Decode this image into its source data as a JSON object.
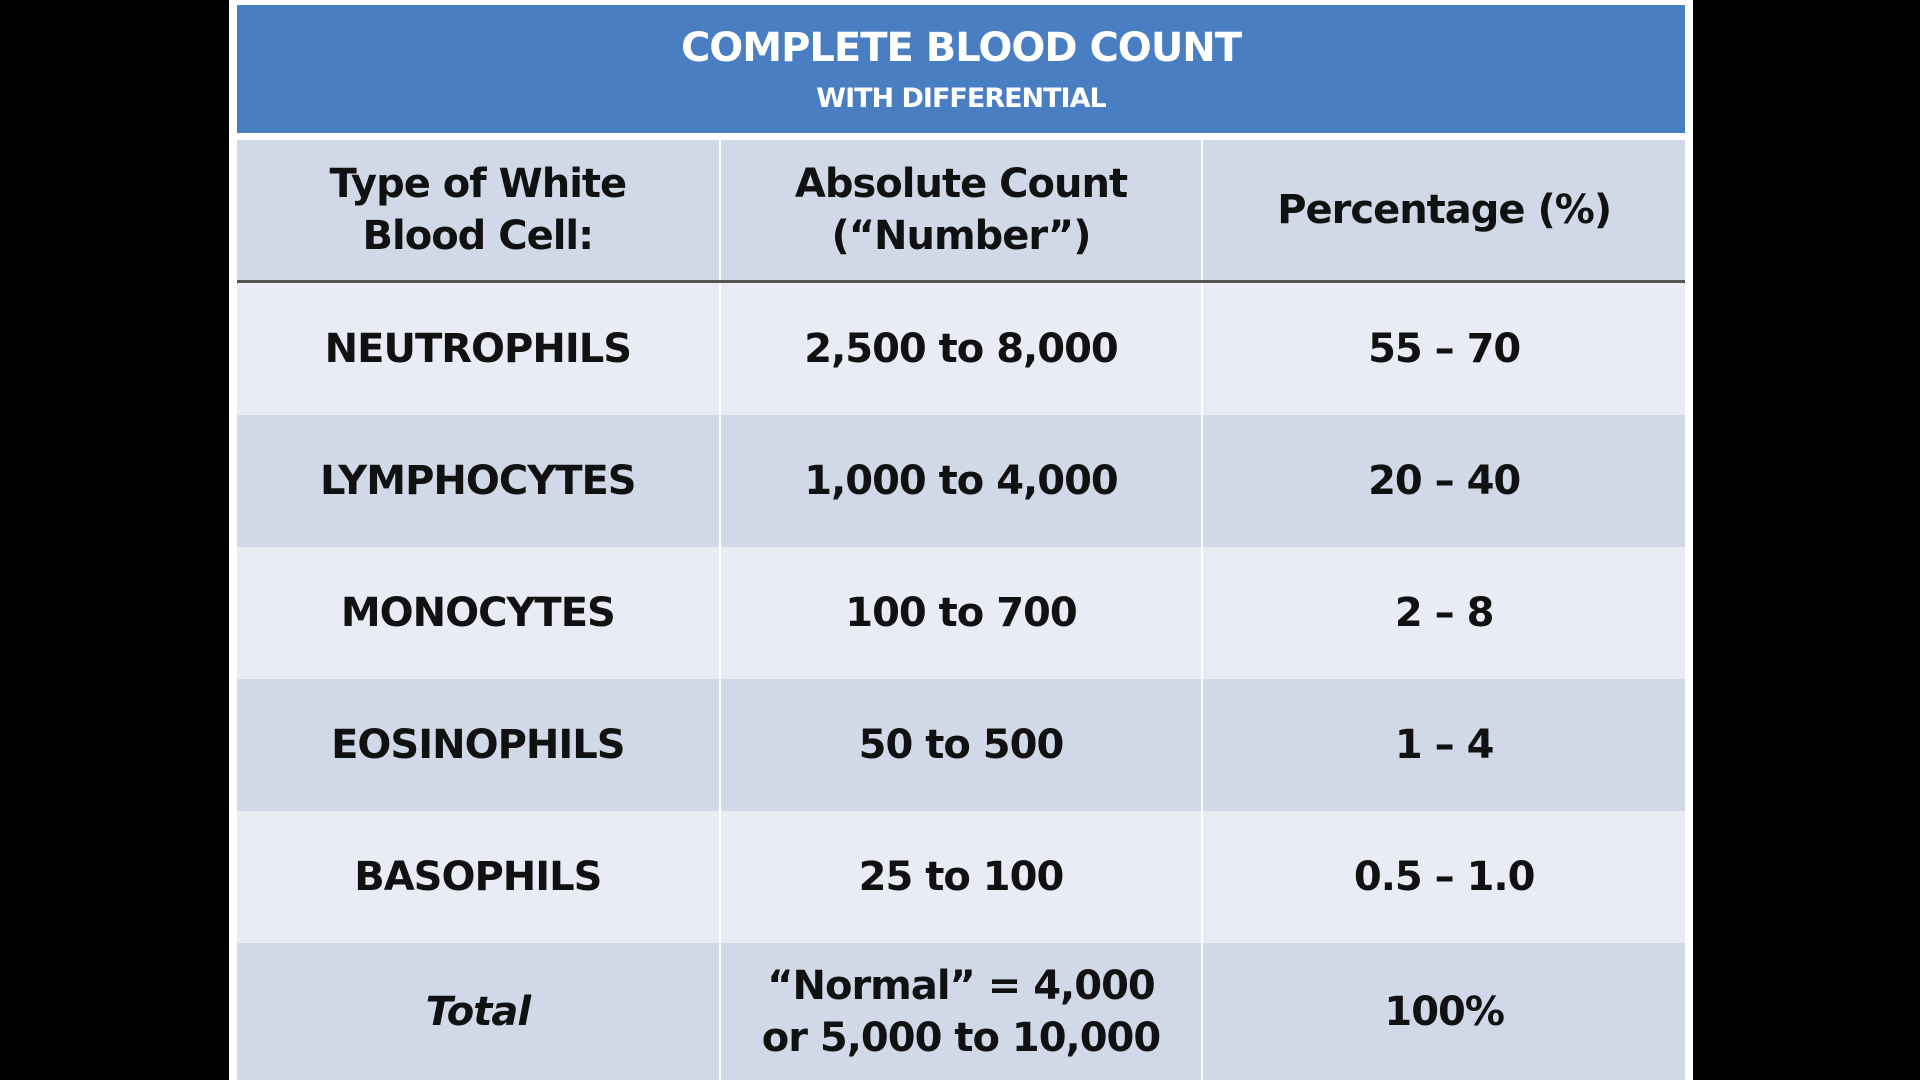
{
  "title": "COMPLETE BLOOD COUNT",
  "subtitle": "WITH DIFFERENTIAL",
  "headers": {
    "type": "Type of White Blood Cell:",
    "count": "Absolute Count (“Number”)",
    "percent": "Percentage (%)"
  },
  "rows": [
    {
      "type": "NEUTROPHILS",
      "count": "2,500 to 8,000",
      "percent": "55 – 70"
    },
    {
      "type": "LYMPHOCYTES",
      "count": "1,000 to 4,000",
      "percent": "20 – 40"
    },
    {
      "type": "MONOCYTES",
      "count": "100 to 700",
      "percent": "2 – 8"
    },
    {
      "type": "EOSINOPHILS",
      "count": "50 to 500",
      "percent": "1 – 4"
    },
    {
      "type": "BASOPHILS",
      "count": "25 to 100",
      "percent": "0.5 – 1.0"
    }
  ],
  "total": {
    "type": "Total",
    "count": "“Normal” = 4,000 or 5,000 to 10,000",
    "percent": "100%"
  },
  "colors": {
    "header_blue": "#4a7ec2",
    "row_light": "#e9ecf4",
    "row_dark": "#d1d9e8"
  }
}
